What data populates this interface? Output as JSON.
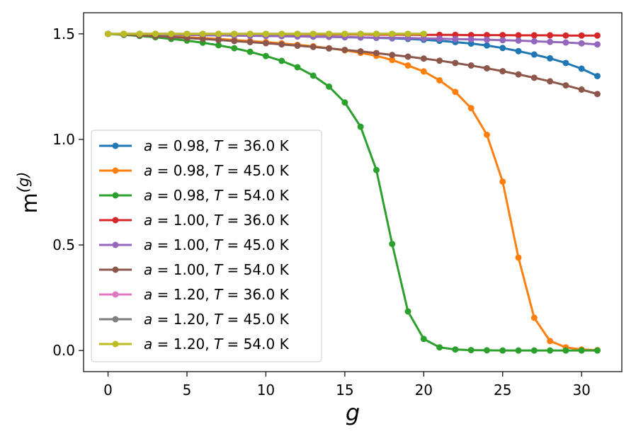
{
  "chart_data": {
    "type": "line",
    "xlabel": "g",
    "ylabel": "m",
    "ylabel_superscript": "(g)",
    "xlim": [
      -1.55,
      32.55
    ],
    "ylim": [
      -0.1,
      1.6
    ],
    "x_ticks": [
      0,
      5,
      10,
      15,
      20,
      25,
      30
    ],
    "x_tick_labels": [
      "0",
      "5",
      "10",
      "15",
      "20",
      "25",
      "30"
    ],
    "y_ticks": [
      0.0,
      0.5,
      1.0,
      1.5
    ],
    "y_tick_labels": [
      "0.0",
      "0.5",
      "1.0",
      "1.5"
    ],
    "grid": false,
    "legend_position": "center-left",
    "series": [
      {
        "name": "a = 0.98, T = 36.0 K",
        "label_a": "a",
        "label_a_value": " = 0.98, ",
        "label_t": "T",
        "label_t_value": " = 36.0 K",
        "color": "#1f77b4",
        "x": [
          0,
          1,
          2,
          3,
          4,
          5,
          6,
          7,
          8,
          9,
          10,
          11,
          12,
          13,
          14,
          15,
          16,
          17,
          18,
          19,
          20,
          21,
          22,
          23,
          24,
          25,
          26,
          27,
          28,
          29,
          30,
          31
        ],
        "y": [
          1.5,
          1.499,
          1.498,
          1.497,
          1.496,
          1.495,
          1.494,
          1.493,
          1.492,
          1.491,
          1.49,
          1.489,
          1.488,
          1.487,
          1.486,
          1.484,
          1.483,
          1.481,
          1.479,
          1.476,
          1.472,
          1.467,
          1.461,
          1.454,
          1.445,
          1.433,
          1.418,
          1.402,
          1.384,
          1.362,
          1.335,
          1.3
        ]
      },
      {
        "name": "a = 0.98, T = 45.0 K",
        "label_a": "a",
        "label_a_value": " = 0.98, ",
        "label_t": "T",
        "label_t_value": " = 45.0 K",
        "color": "#ff7f0e",
        "x": [
          0,
          1,
          2,
          3,
          4,
          5,
          6,
          7,
          8,
          9,
          10,
          11,
          12,
          13,
          14,
          15,
          16,
          17,
          18,
          19,
          20,
          21,
          22,
          23,
          24,
          25,
          26,
          27,
          28,
          29,
          30,
          31
        ],
        "y": [
          1.5,
          1.497,
          1.494,
          1.491,
          1.488,
          1.484,
          1.48,
          1.476,
          1.471,
          1.466,
          1.461,
          1.455,
          1.448,
          1.441,
          1.432,
          1.422,
          1.41,
          1.396,
          1.376,
          1.35,
          1.322,
          1.28,
          1.225,
          1.148,
          1.022,
          0.8,
          0.44,
          0.155,
          0.045,
          0.015,
          0.005,
          0.002
        ]
      },
      {
        "name": "a = 0.98, T = 54.0 K",
        "label_a": "a",
        "label_a_value": " = 0.98, ",
        "label_t": "T",
        "label_t_value": " = 54.0 K",
        "color": "#2ca02c",
        "x": [
          0,
          1,
          2,
          3,
          4,
          5,
          6,
          7,
          8,
          9,
          10,
          11,
          12,
          13,
          14,
          15,
          16,
          17,
          18,
          19,
          20,
          21,
          22,
          23,
          24,
          25,
          26,
          27,
          28,
          29,
          30,
          31
        ],
        "y": [
          1.5,
          1.495,
          1.49,
          1.484,
          1.476,
          1.468,
          1.458,
          1.446,
          1.432,
          1.415,
          1.395,
          1.372,
          1.342,
          1.302,
          1.25,
          1.175,
          1.06,
          0.855,
          0.505,
          0.185,
          0.055,
          0.015,
          0.005,
          0.002,
          0.001,
          0.0,
          0.0,
          0.0,
          0.0,
          0.0,
          0.0,
          0.0
        ]
      },
      {
        "name": "a = 1.00, T = 36.0 K",
        "label_a": "a",
        "label_a_value": " = 1.00, ",
        "label_t": "T",
        "label_t_value": " = 36.0 K",
        "color": "#d62728",
        "x": [
          0,
          1,
          2,
          3,
          4,
          5,
          6,
          7,
          8,
          9,
          10,
          11,
          12,
          13,
          14,
          15,
          16,
          17,
          18,
          19,
          20,
          21,
          22,
          23,
          24,
          25,
          26,
          27,
          28,
          29,
          30,
          31
        ],
        "y": [
          1.5,
          1.5,
          1.5,
          1.5,
          1.5,
          1.499,
          1.499,
          1.499,
          1.499,
          1.499,
          1.498,
          1.498,
          1.498,
          1.498,
          1.497,
          1.497,
          1.497,
          1.496,
          1.496,
          1.496,
          1.495,
          1.495,
          1.495,
          1.494,
          1.494,
          1.494,
          1.493,
          1.493,
          1.493,
          1.492,
          1.492,
          1.492
        ]
      },
      {
        "name": "a = 1.00, T = 45.0 K",
        "label_a": "a",
        "label_a_value": " = 1.00, ",
        "label_t": "T",
        "label_t_value": " = 45.0 K",
        "color": "#9467bd",
        "x": [
          0,
          1,
          2,
          3,
          4,
          5,
          6,
          7,
          8,
          9,
          10,
          11,
          12,
          13,
          14,
          15,
          16,
          17,
          18,
          19,
          20,
          21,
          22,
          23,
          24,
          25,
          26,
          27,
          28,
          29,
          30,
          31
        ],
        "y": [
          1.5,
          1.499,
          1.498,
          1.497,
          1.496,
          1.495,
          1.494,
          1.493,
          1.492,
          1.491,
          1.49,
          1.489,
          1.488,
          1.487,
          1.486,
          1.485,
          1.483,
          1.482,
          1.481,
          1.48,
          1.478,
          1.477,
          1.475,
          1.474,
          1.472,
          1.47,
          1.468,
          1.465,
          1.462,
          1.459,
          1.455,
          1.45
        ]
      },
      {
        "name": "a = 1.00, T = 54.0 K",
        "label_a": "a",
        "label_a_value": " = 1.00, ",
        "label_t": "T",
        "label_t_value": " = 54.0 K",
        "color": "#8c564b",
        "x": [
          0,
          1,
          2,
          3,
          4,
          5,
          6,
          7,
          8,
          9,
          10,
          11,
          12,
          13,
          14,
          15,
          16,
          17,
          18,
          19,
          20,
          21,
          22,
          23,
          24,
          25,
          26,
          27,
          28,
          29,
          30,
          31
        ],
        "y": [
          1.5,
          1.497,
          1.493,
          1.489,
          1.485,
          1.48,
          1.476,
          1.471,
          1.466,
          1.461,
          1.456,
          1.45,
          1.444,
          1.438,
          1.431,
          1.424,
          1.417,
          1.409,
          1.4,
          1.392,
          1.383,
          1.373,
          1.362,
          1.35,
          1.337,
          1.323,
          1.308,
          1.292,
          1.275,
          1.256,
          1.236,
          1.215
        ]
      },
      {
        "name": "a = 1.20, T = 36.0 K",
        "label_a": "a",
        "label_a_value": " = 1.20, ",
        "label_t": "T",
        "label_t_value": " = 36.0 K",
        "color": "#e377c2",
        "x": [
          0,
          1,
          2,
          3,
          4,
          5,
          6,
          7,
          8,
          9,
          10,
          11,
          12,
          13,
          14,
          15,
          16,
          17,
          18,
          19,
          20
        ],
        "y": [
          1.5,
          1.5,
          1.5,
          1.5,
          1.5,
          1.5,
          1.5,
          1.5,
          1.5,
          1.5,
          1.5,
          1.5,
          1.5,
          1.5,
          1.5,
          1.5,
          1.5,
          1.5,
          1.5,
          1.5,
          1.5
        ]
      },
      {
        "name": "a = 1.20, T = 45.0 K",
        "label_a": "a",
        "label_a_value": " = 1.20, ",
        "label_t": "T",
        "label_t_value": " = 45.0 K",
        "color": "#7f7f7f",
        "x": [
          0,
          1,
          2,
          3,
          4,
          5,
          6,
          7,
          8,
          9,
          10,
          11,
          12,
          13,
          14,
          15,
          16,
          17,
          18,
          19,
          20
        ],
        "y": [
          1.5,
          1.5,
          1.5,
          1.5,
          1.5,
          1.5,
          1.5,
          1.5,
          1.5,
          1.5,
          1.5,
          1.5,
          1.5,
          1.5,
          1.5,
          1.5,
          1.5,
          1.5,
          1.5,
          1.5,
          1.5
        ]
      },
      {
        "name": "a = 1.20, T = 54.0 K",
        "label_a": "a",
        "label_a_value": " = 1.20, ",
        "label_t": "T",
        "label_t_value": " = 54.0 K",
        "color": "#bcbd22",
        "x": [
          0,
          1,
          2,
          3,
          4,
          5,
          6,
          7,
          8,
          9,
          10,
          11,
          12,
          13,
          14,
          15,
          16,
          17,
          18,
          19,
          20
        ],
        "y": [
          1.5,
          1.5,
          1.5,
          1.5,
          1.5,
          1.5,
          1.5,
          1.5,
          1.5,
          1.5,
          1.5,
          1.5,
          1.5,
          1.5,
          1.5,
          1.5,
          1.5,
          1.5,
          1.5,
          1.5,
          1.5
        ]
      }
    ]
  }
}
